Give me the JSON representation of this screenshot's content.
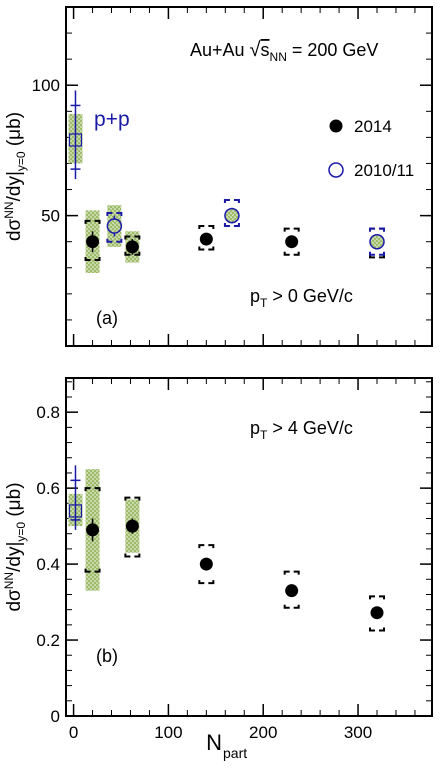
{
  "colors": {
    "run2014": "#000000",
    "run2010": "#1a1aa8",
    "syst_band": "#9dbb6a",
    "pp": "#1a1aa8",
    "frame": "#000000"
  },
  "xaxis": {
    "label_main": "N",
    "label_sub": "part",
    "range": [
      -8,
      378
    ],
    "ticks": [
      0,
      100,
      200,
      300
    ],
    "tick_labels": [
      "0",
      "100",
      "200",
      "300"
    ]
  },
  "chart_data": [
    {
      "type": "scatter",
      "panel_tag": "(a)",
      "ylabel": "dσ^NN/dy|_y=0 (μb)",
      "ylim": [
        0,
        130
      ],
      "yticks": [
        50,
        100
      ],
      "ytick_labels": [
        "50",
        "100"
      ],
      "system_label": "Au+Au √s_NN = 200 GeV",
      "pt_cut": "p_T > 0 GeV/c",
      "legend": {
        "position": "top-right",
        "entries": [
          {
            "label": "2014",
            "marker": "filled-circle"
          },
          {
            "label": "2010/11",
            "marker": "open-circle"
          }
        ]
      },
      "pp": {
        "label": "p+p",
        "x": 2,
        "y": 79,
        "stat_lo": 64,
        "stat_hi": 98,
        "syst_lo": 70,
        "syst_hi": 89
      },
      "series": [
        {
          "name": "2014",
          "points": [
            {
              "x": 20,
              "y": 40,
              "stat_lo": 36,
              "stat_hi": 44,
              "syst_lo": 33,
              "syst_hi": 48,
              "band_lo": 28,
              "band_hi": 52
            },
            {
              "x": 62,
              "y": 38,
              "stat_lo": 35,
              "stat_hi": 41,
              "syst_lo": 35,
              "syst_hi": 42,
              "band_lo": 32,
              "band_hi": 44
            },
            {
              "x": 140,
              "y": 41,
              "stat_lo": 39,
              "stat_hi": 43,
              "syst_lo": 37,
              "syst_hi": 46
            },
            {
              "x": 230,
              "y": 40,
              "stat_lo": 38,
              "stat_hi": 42,
              "syst_lo": 35,
              "syst_hi": 45
            },
            {
              "x": 320,
              "y": 39.5,
              "stat_lo": 38,
              "stat_hi": 41,
              "syst_lo": 34,
              "syst_hi": 45
            }
          ]
        },
        {
          "name": "2010/11",
          "points": [
            {
              "x": 43,
              "y": 46,
              "stat_lo": 42,
              "stat_hi": 50,
              "syst_lo": 40,
              "syst_hi": 51,
              "band_lo": 38,
              "band_hi": 54
            },
            {
              "x": 167,
              "y": 50,
              "stat_lo": 47,
              "stat_hi": 53,
              "syst_lo": 46,
              "syst_hi": 56
            },
            {
              "x": 320,
              "y": 40,
              "stat_lo": 38,
              "stat_hi": 42,
              "syst_lo": 35,
              "syst_hi": 45
            }
          ]
        }
      ]
    },
    {
      "type": "scatter",
      "panel_tag": "(b)",
      "ylabel": "dσ^NN/dy|_y=0 (μb)",
      "ylim": [
        0,
        0.89
      ],
      "yticks": [
        0,
        0.2,
        0.4,
        0.6,
        0.8
      ],
      "ytick_labels": [
        "0",
        "0.2",
        "0.4",
        "0.6",
        "0.8"
      ],
      "pt_cut": "p_T > 4 GeV/c",
      "pp": {
        "x": 2,
        "y": 0.54,
        "stat_lo": 0.49,
        "stat_hi": 0.66,
        "syst_lo": 0.5,
        "syst_hi": 0.585
      },
      "series": [
        {
          "name": "2014",
          "points": [
            {
              "x": 20,
              "y": 0.49,
              "stat_lo": 0.46,
              "stat_hi": 0.52,
              "syst_lo": 0.38,
              "syst_hi": 0.6,
              "band_lo": 0.33,
              "band_hi": 0.65
            },
            {
              "x": 62,
              "y": 0.5,
              "stat_lo": 0.48,
              "stat_hi": 0.52,
              "syst_lo": 0.42,
              "syst_hi": 0.575,
              "band_lo": 0.43,
              "band_hi": 0.57
            },
            {
              "x": 140,
              "y": 0.4,
              "stat_lo": 0.39,
              "stat_hi": 0.41,
              "syst_lo": 0.35,
              "syst_hi": 0.45
            },
            {
              "x": 230,
              "y": 0.33,
              "stat_lo": 0.32,
              "stat_hi": 0.34,
              "syst_lo": 0.285,
              "syst_hi": 0.38
            },
            {
              "x": 320,
              "y": 0.272,
              "stat_lo": 0.262,
              "stat_hi": 0.282,
              "syst_lo": 0.225,
              "syst_hi": 0.315
            }
          ]
        }
      ]
    }
  ]
}
